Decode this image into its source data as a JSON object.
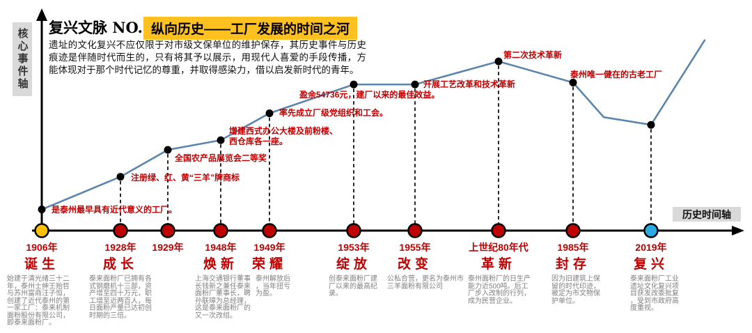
{
  "page": {
    "series_label": "复兴文脉 NO.1",
    "title": "纵向历史——工厂发展的时间之河",
    "intro": "遗址的文化复兴不应仅限于对市级文保单位的维护保存，其历史事件与历史痕迹是伴随时代而生的，只有将其予以展示，用现代人喜爱的手段传播，方能体现对于那个时代记忆的尊重，并取得感染力，借以启发新时代的青年。",
    "y_axis_label": "核心事件轴",
    "x_axis_label": "历史时间轴"
  },
  "colors": {
    "accent_red": "#C00000",
    "highlight_gold": "#FFC120",
    "line_blue": "#5B85AD",
    "axis_black": "#000000",
    "axis_label_bg": "#D9D9D9",
    "desc_gray": "#808080",
    "dot_yellow": "#FFC000",
    "dot_red": "#C00000",
    "dot_blue": "#29ABE2"
  },
  "chart_data": {
    "type": "line",
    "title": "纵向历史——工厂发展的时间之河",
    "xlabel": "历史时间轴",
    "ylabel": "核心事件轴",
    "ylim": [
      0,
      100
    ],
    "value_note": "relative event-axis height 0-100 read from the curve",
    "categories": [
      "1906年",
      "1928年",
      "1929年",
      "1948年",
      "1949年",
      "1953年",
      "1955年",
      "上世纪80年代",
      "1985年",
      "2019年"
    ],
    "values": [
      11,
      28,
      42,
      47,
      61,
      76,
      76,
      88,
      77,
      55
    ],
    "extra_points": [
      {
        "position": "between 1985年 and 2019年",
        "value": 59
      },
      {
        "position": "rising end after 2019年",
        "value": 99
      }
    ],
    "milestones": [
      {
        "year": "1906年",
        "keyword": "诞生",
        "value": 11,
        "dot_color": "#FFC000",
        "event": "是泰州最早具有近代意义的工厂。",
        "desc": "始建于清光绪三十二年，泰州士绅王贻哲与苏州富商汪子恒，创建了近代泰州的第一家工厂：泰来机制面粉股份有限公司，即泰来面粉厂。"
      },
      {
        "year": "1928年",
        "keyword": "成长",
        "value": 28,
        "dot_color": "#C00000",
        "event": "注册绿、红、黄“三羊”牌商标",
        "desc": "泰来面粉厂已拥有各式钢磨机十三部，资产增至四十万元，职工增至近两百人，每日面粉产量已达初创时期的三倍。"
      },
      {
        "year": "1929年",
        "keyword": "",
        "value": 42,
        "dot_color": "#C00000",
        "event": "全国农产品展览会二等奖",
        "desc": ""
      },
      {
        "year": "1948年",
        "keyword": "焕新",
        "value": 47,
        "dot_color": "#C00000",
        "event": "增建西式办公大楼及前粉楼、西仓库各一座。",
        "desc": "上海交通银行董事长钱新之兼任泰来面粉厂董事长，聘孙联璋为总经理，这是泰来面粉厂的又一次改组。"
      },
      {
        "year": "1949年",
        "keyword": "荣耀",
        "value": 61,
        "dot_color": "#C00000",
        "event": "率先成立厂级党组织和工会。",
        "desc": "泰州解放后，当年扭亏为盈。"
      },
      {
        "year": "1953年",
        "keyword": "绽放",
        "value": 76,
        "dot_color": "#C00000",
        "event": "盈余54736元，建厂以来的最佳效益。",
        "desc": "创泰来面粉厂建厂以来的最高纪录。"
      },
      {
        "year": "1955年",
        "keyword": "改变",
        "value": 76,
        "dot_color": "#C00000",
        "event": "开展工艺改革和技术革新",
        "desc": "公私合营，更名为泰州市三羊面粉有限公司"
      },
      {
        "year": "上世纪80年代",
        "keyword": "革新",
        "value": 88,
        "dot_color": "#C00000",
        "event": "第二次技术革新",
        "desc": "泰州面粉厂的日生产能力近500吨。后工厂步入改制的行列，成为民营企业。"
      },
      {
        "year": "1985年",
        "keyword": "封存",
        "value": 77,
        "dot_color": "#C00000",
        "event": "泰州唯一健在的古老工厂",
        "desc": "因为旧建筑上保留的时代印迹，被定为市文物保护单位。"
      },
      {
        "year": "2019年",
        "keyword": "复兴",
        "value": 55,
        "dot_color": "#29ABE2",
        "event": "",
        "desc": "泰来面粉厂工业遗址文化复兴项目获发改委批复，受到市政府高度重视。"
      }
    ]
  }
}
